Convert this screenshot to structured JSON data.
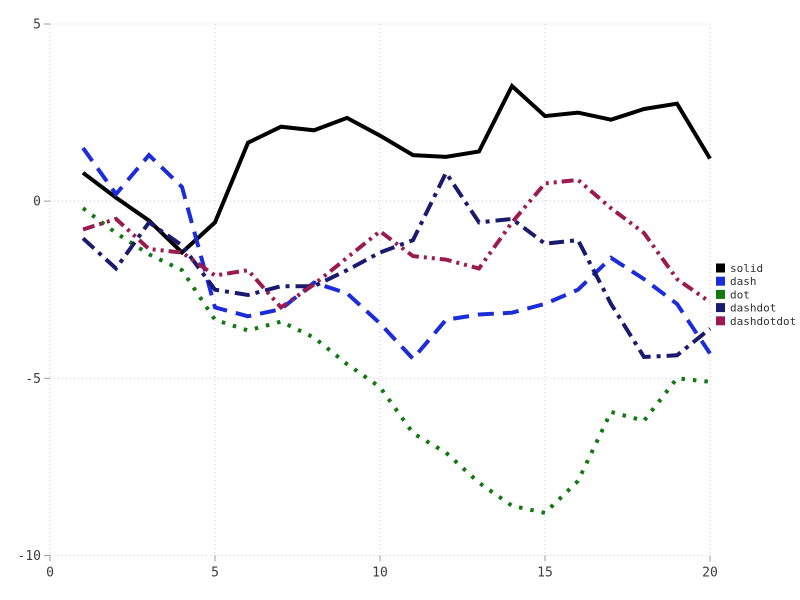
{
  "chart_data": {
    "type": "line",
    "title": "",
    "xlabel": "",
    "ylabel": "",
    "xlim": [
      0,
      20
    ],
    "ylim": [
      -10,
      5
    ],
    "x_ticks": [
      0,
      5,
      10,
      15,
      20
    ],
    "y_ticks": [
      -10,
      -5,
      0,
      5
    ],
    "grid": true,
    "grid_style": "dotted",
    "legend_position": "right",
    "x": [
      1,
      2,
      3,
      4,
      5,
      6,
      7,
      8,
      9,
      10,
      11,
      12,
      13,
      14,
      15,
      16,
      17,
      18,
      19,
      20
    ],
    "series": [
      {
        "name": "solid",
        "color": "#000000",
        "dash_style": "solid",
        "values": [
          0.8,
          0.1,
          -0.55,
          -1.45,
          -0.6,
          1.65,
          2.1,
          2.0,
          2.35,
          1.85,
          1.3,
          1.25,
          1.4,
          3.25,
          2.4,
          2.5,
          2.3,
          2.6,
          2.75,
          1.2
        ]
      },
      {
        "name": "dash",
        "color": "#1b2cd8",
        "dash_style": "dash",
        "values": [
          1.5,
          0.2,
          1.3,
          0.4,
          -3.0,
          -3.25,
          -3.05,
          -2.3,
          -2.6,
          -3.45,
          -4.45,
          -3.35,
          -3.2,
          -3.15,
          -2.9,
          -2.5,
          -1.6,
          -2.2,
          -2.9,
          -4.3
        ]
      },
      {
        "name": "dot",
        "color": "#127812",
        "dash_style": "dot",
        "values": [
          -0.2,
          -0.9,
          -1.5,
          -1.95,
          -3.35,
          -3.65,
          -3.4,
          -3.85,
          -4.6,
          -5.25,
          -6.55,
          -7.1,
          -7.95,
          -8.6,
          -8.8,
          -7.9,
          -5.95,
          -6.2,
          -5.0,
          -5.1
        ]
      },
      {
        "name": "dashdot",
        "color": "#1a1a6e",
        "dash_style": "dashdot",
        "values": [
          -1.05,
          -1.9,
          -0.6,
          -1.25,
          -2.5,
          -2.65,
          -2.4,
          -2.4,
          -1.95,
          -1.45,
          -1.1,
          0.8,
          -0.6,
          -0.5,
          -1.2,
          -1.1,
          -2.9,
          -4.4,
          -4.35,
          -3.6
        ]
      },
      {
        "name": "dashdotdot",
        "color": "#9b1b50",
        "dash_style": "dashdotdot",
        "values": [
          -0.8,
          -0.5,
          -1.35,
          -1.45,
          -2.1,
          -1.95,
          -3.0,
          -2.35,
          -1.6,
          -0.85,
          -1.55,
          -1.65,
          -1.9,
          -0.6,
          0.5,
          0.6,
          -0.2,
          -0.9,
          -2.2,
          -2.85
        ]
      }
    ],
    "legend": [
      "solid",
      "dash",
      "dot",
      "dashdot",
      "dashdotdot"
    ]
  },
  "style": {
    "background": "#ffffff",
    "grid_color": "#c9cde0",
    "tick_text_color": "#3c3c3c",
    "tick_mark_color": "#9a9aa8",
    "legend_text_color": "#303030"
  }
}
